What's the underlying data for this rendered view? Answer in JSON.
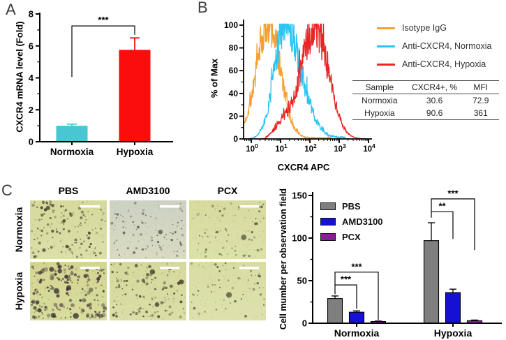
{
  "panels": {
    "a": {
      "label": "A"
    },
    "b": {
      "label": "B"
    },
    "c": {
      "label": "C",
      "col_headers": [
        "PBS",
        "AMD3100",
        "PCX"
      ],
      "row_headers": [
        "Normoxia",
        "Hypoxia"
      ],
      "scale_bar_color": "#ffffff",
      "micrographs": [
        {
          "condition": "Normoxia",
          "treatment": "PBS",
          "base": "#d7da9c",
          "base2": "#dcdfa8",
          "dot_color": "#4e4732",
          "count": 140,
          "rmin": 0.7,
          "rmax": 2.4,
          "seed": 11,
          "blobs": 2
        },
        {
          "condition": "Normoxia",
          "treatment": "AMD3100",
          "base": "#cdd1c3",
          "base2": "#d9dbc2",
          "dot_color": "#5a5c4c",
          "count": 88,
          "rmin": 0.7,
          "rmax": 2.0,
          "seed": 22,
          "blobs": 1
        },
        {
          "condition": "Normoxia",
          "treatment": "PCX",
          "base": "#d8db9f",
          "base2": "#dde0aa",
          "dot_color": "#585c42",
          "count": 78,
          "rmin": 0.6,
          "rmax": 1.9,
          "seed": 33,
          "blobs": 1
        },
        {
          "condition": "Hypoxia",
          "treatment": "PBS",
          "base": "#d3d690",
          "base2": "#d9dc9e",
          "dot_color": "#3a3134",
          "count": 175,
          "rmin": 0.9,
          "rmax": 3.2,
          "seed": 44,
          "blobs": 8
        },
        {
          "condition": "Hypoxia",
          "treatment": "AMD3100",
          "base": "#d6d99c",
          "base2": "#dbdea6",
          "dot_color": "#48412d",
          "count": 115,
          "rmin": 0.7,
          "rmax": 2.5,
          "seed": 55,
          "blobs": 3
        },
        {
          "condition": "Hypoxia",
          "treatment": "PCX",
          "base": "#d9dca3",
          "base2": "#dee1ac",
          "dot_color": "#565a40",
          "count": 60,
          "rmin": 0.6,
          "rmax": 1.9,
          "seed": 66,
          "blobs": 1
        }
      ]
    }
  },
  "chart_data": [
    {
      "id": "cxcr4-mrna",
      "type": "bar",
      "ylabel": "CXCR4 mRNA level (Fold)",
      "categories": [
        "Normoxia",
        "Hypoxia"
      ],
      "values": [
        1.0,
        5.75
      ],
      "errors": [
        0.1,
        0.75
      ],
      "bar_colors": [
        "#48c7d2",
        "#fb0d0d"
      ],
      "ylim": [
        0,
        8
      ],
      "yticks": [
        0,
        2,
        4,
        6,
        8
      ],
      "yticks_minor": [
        1,
        3,
        5,
        7
      ],
      "significance": [
        {
          "from": 0,
          "to": 1,
          "label": "***",
          "y": 7.25,
          "left_drop_to": 4.05,
          "right_drop_to": 6.7
        }
      ]
    },
    {
      "id": "flow-cytometry",
      "type": "line",
      "subtype": "flow-histogram",
      "xlabel": "CXCR4 APC",
      "ylabel": "% of Max",
      "x_scale": "log10",
      "x_tick_exponents": [
        0,
        1,
        2,
        3,
        4
      ],
      "x_range_log": [
        -0.26,
        3.95
      ],
      "yticks": [
        0,
        20,
        40,
        60,
        80,
        100
      ],
      "ylim": [
        0,
        100
      ],
      "legend_position": "right",
      "series": [
        {
          "name": "Isotype IgG",
          "color": "#f5a032",
          "peak_log": 0.6,
          "sigma_left": 0.42,
          "sigma_right": 0.4,
          "peak_max": 100,
          "floor": [
            1.5,
            2.7,
            1.6
          ],
          "seed": 7
        },
        {
          "name": "Anti-CXCR4, Normoxia",
          "color": "#2bc4f3",
          "peak_log": 1.15,
          "sigma_left": 0.36,
          "sigma_right": 0.55,
          "peak_max": 100,
          "floor": [
            2.1,
            3.2,
            2.0
          ],
          "seed": 19
        },
        {
          "name": "Anti-CXCR4, Hypoxia",
          "color": "#e92525",
          "peak_log": 2.18,
          "sigma_left": 0.5,
          "sigma_right": 0.46,
          "peak_max": 97,
          "bump": {
            "c": 1.05,
            "s": 0.22,
            "max": 11
          },
          "floor": [
            0.5,
            0.9,
            2.5
          ],
          "seed": 29
        }
      ],
      "table": {
        "headers": [
          "Sample",
          "CXCR4+, %",
          "MFI"
        ],
        "rows": [
          [
            "Normoxia",
            "30.6",
            "72.9"
          ],
          [
            "Hypoxia",
            "90.6",
            "361"
          ]
        ]
      }
    },
    {
      "id": "cell-migration",
      "type": "bar",
      "subtype": "grouped",
      "ylabel": "Cell mumber per observation field",
      "categories": [
        "Normoxia",
        "Hypoxia"
      ],
      "series": [
        {
          "name": "PBS",
          "color": "#7f7f7f",
          "values": [
            29,
            97
          ],
          "errors": [
            3,
            21
          ]
        },
        {
          "name": "AMD3100",
          "color": "#1411d2",
          "values": [
            13,
            36
          ],
          "errors": [
            1.5,
            4
          ]
        },
        {
          "name": "PCX",
          "color": "#8c1a9f",
          "values": [
            2,
            3
          ],
          "errors": [
            0.6,
            0.8
          ]
        }
      ],
      "ylim": [
        0,
        150
      ],
      "yticks": [
        0,
        50,
        100,
        150
      ],
      "yticks_minor": [
        25,
        75,
        125
      ],
      "legend_position": "upper-left",
      "significance": [
        {
          "group": 0,
          "from": 0,
          "to": 1,
          "label": "***",
          "y": 45,
          "left_drop_to": 34,
          "right_drop_to": 17
        },
        {
          "group": 0,
          "from": 0,
          "to": 2,
          "label": "***",
          "y": 60,
          "left_drop_to": 45,
          "right_drop_to": 4
        },
        {
          "group": 1,
          "from": 0,
          "to": 1,
          "label": "**",
          "y": 131,
          "left_drop_to": 124,
          "right_drop_to": 99
        },
        {
          "group": 1,
          "from": 0,
          "to": 2,
          "label": "***",
          "y": 146,
          "left_drop_to": 131,
          "right_drop_to": 86
        }
      ]
    }
  ]
}
